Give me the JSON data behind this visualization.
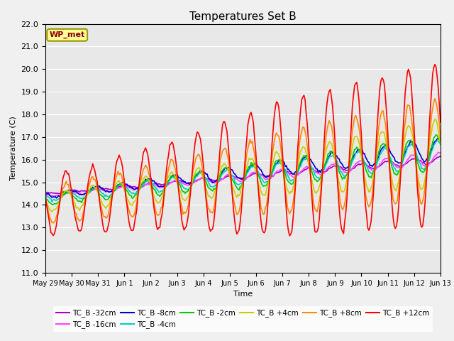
{
  "title": "Temperatures Set B",
  "xlabel": "Time",
  "ylabel": "Temperature (C)",
  "ylim": [
    11.0,
    22.0
  ],
  "yticks": [
    11.0,
    12.0,
    13.0,
    14.0,
    15.0,
    16.0,
    17.0,
    18.0,
    19.0,
    20.0,
    21.0,
    22.0
  ],
  "bg_color": "#e8e8e8",
  "grid_color": "#ffffff",
  "series_order": [
    "TC_B -32cm",
    "TC_B -16cm",
    "TC_B -8cm",
    "TC_B -4cm",
    "TC_B -2cm",
    "TC_B +4cm",
    "TC_B +8cm",
    "TC_B +12cm"
  ],
  "series": {
    "TC_B -32cm": {
      "color": "#aa00cc",
      "lw": 1.2
    },
    "TC_B -16cm": {
      "color": "#ff44ff",
      "lw": 1.2
    },
    "TC_B -8cm": {
      "color": "#0000cc",
      "lw": 1.2
    },
    "TC_B -4cm": {
      "color": "#00cccc",
      "lw": 1.2
    },
    "TC_B -2cm": {
      "color": "#00cc00",
      "lw": 1.2
    },
    "TC_B +4cm": {
      "color": "#cccc00",
      "lw": 1.2
    },
    "TC_B +8cm": {
      "color": "#ff8800",
      "lw": 1.2
    },
    "TC_B +12cm": {
      "color": "#ff0000",
      "lw": 1.2
    }
  },
  "xtick_labels": [
    "May 29",
    "May 30",
    "May 31",
    "Jun 1",
    "Jun 2",
    "Jun 3",
    "Jun 4",
    "Jun 5",
    "Jun 6",
    "Jun 7",
    "Jun 8",
    "Jun 9",
    "Jun 10",
    "Jun 11",
    "Jun 12",
    "Jun 13"
  ],
  "annotation": "WP_met",
  "fig_facecolor": "#f0f0f0"
}
